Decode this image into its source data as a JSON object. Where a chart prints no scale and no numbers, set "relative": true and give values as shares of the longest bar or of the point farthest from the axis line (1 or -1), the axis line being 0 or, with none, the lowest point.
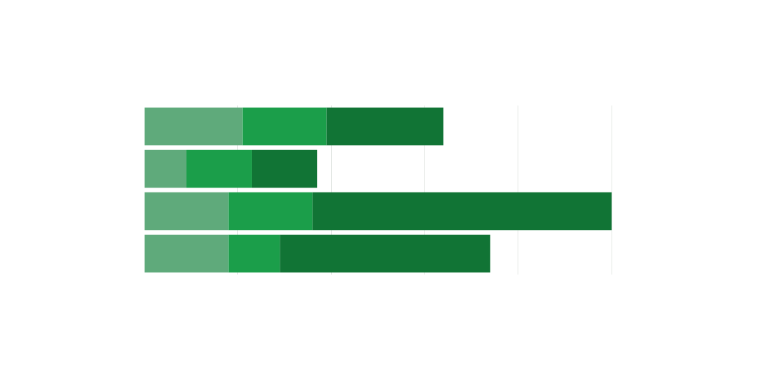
{
  "chart_data": {
    "type": "bar",
    "orientation": "horizontal",
    "stacked": true,
    "relative": true,
    "categories": [
      null,
      null,
      null,
      null
    ],
    "series": [
      {
        "color": "#5faa7b",
        "values": [
          0.21,
          0.09,
          0.18,
          0.18
        ]
      },
      {
        "color": "#1b9e4a",
        "values": [
          0.18,
          0.14,
          0.18,
          0.11
        ]
      },
      {
        "color": "#117435",
        "values": [
          0.25,
          0.14,
          0.64,
          0.45
        ]
      }
    ],
    "grid": "x",
    "tick_labels": false
  }
}
